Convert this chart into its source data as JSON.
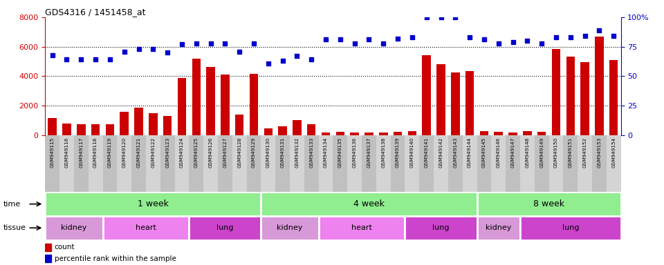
{
  "title": "GDS4316 / 1451458_at",
  "samples": [
    "GSM949115",
    "GSM949116",
    "GSM949117",
    "GSM949118",
    "GSM949119",
    "GSM949120",
    "GSM949121",
    "GSM949122",
    "GSM949123",
    "GSM949124",
    "GSM949125",
    "GSM949126",
    "GSM949127",
    "GSM949128",
    "GSM949129",
    "GSM949130",
    "GSM949131",
    "GSM949132",
    "GSM949133",
    "GSM949134",
    "GSM949135",
    "GSM949136",
    "GSM949137",
    "GSM949138",
    "GSM949139",
    "GSM949140",
    "GSM949141",
    "GSM949142",
    "GSM949143",
    "GSM949144",
    "GSM949145",
    "GSM949146",
    "GSM949147",
    "GSM949148",
    "GSM949149",
    "GSM949150",
    "GSM949151",
    "GSM949152",
    "GSM949153",
    "GSM949154"
  ],
  "counts": [
    1150,
    800,
    750,
    720,
    760,
    1600,
    1850,
    1500,
    1300,
    3900,
    5200,
    4650,
    4100,
    1380,
    4150,
    450,
    600,
    1000,
    750,
    190,
    230,
    190,
    190,
    190,
    230,
    280,
    5400,
    4800,
    4250,
    4350,
    280,
    210,
    190,
    290,
    240,
    5850,
    5350,
    4950,
    6700,
    5100
  ],
  "percentile": [
    68,
    64,
    64,
    64,
    64,
    71,
    73,
    73,
    70,
    77,
    78,
    78,
    78,
    71,
    78,
    61,
    63,
    67,
    64,
    81,
    81,
    78,
    81,
    78,
    82,
    83,
    100,
    100,
    100,
    83,
    81,
    78,
    79,
    80,
    78,
    83,
    83,
    84,
    89,
    84
  ],
  "bar_color": "#cc0000",
  "dot_color": "#0000cc",
  "ylim_main": [
    0,
    8000
  ],
  "yticks_left": [
    0,
    2000,
    4000,
    6000,
    8000
  ],
  "yticks_right": [
    0,
    25,
    50,
    75,
    100
  ],
  "grid_values": [
    2000,
    4000,
    6000
  ],
  "time_bands": [
    {
      "label": "1 week",
      "start": 0,
      "end": 14
    },
    {
      "label": "4 week",
      "start": 15,
      "end": 29
    },
    {
      "label": "8 week",
      "start": 30,
      "end": 39
    }
  ],
  "tissue_bands": [
    {
      "label": "kidney",
      "start": 0,
      "end": 3,
      "color": "#d899d8"
    },
    {
      "label": "heart",
      "start": 4,
      "end": 9,
      "color": "#ee82ee"
    },
    {
      "label": "lung",
      "start": 10,
      "end": 14,
      "color": "#cc44cc"
    },
    {
      "label": "kidney",
      "start": 15,
      "end": 18,
      "color": "#d899d8"
    },
    {
      "label": "heart",
      "start": 19,
      "end": 24,
      "color": "#ee82ee"
    },
    {
      "label": "lung",
      "start": 25,
      "end": 29,
      "color": "#cc44cc"
    },
    {
      "label": "kidney",
      "start": 30,
      "end": 32,
      "color": "#d899d8"
    },
    {
      "label": "lung",
      "start": 33,
      "end": 39,
      "color": "#cc44cc"
    }
  ],
  "time_color": "#90ee90",
  "bg_color": "#ffffff",
  "tickbg_even": "#c0c0c0",
  "tickbg_odd": "#d4d4d4"
}
